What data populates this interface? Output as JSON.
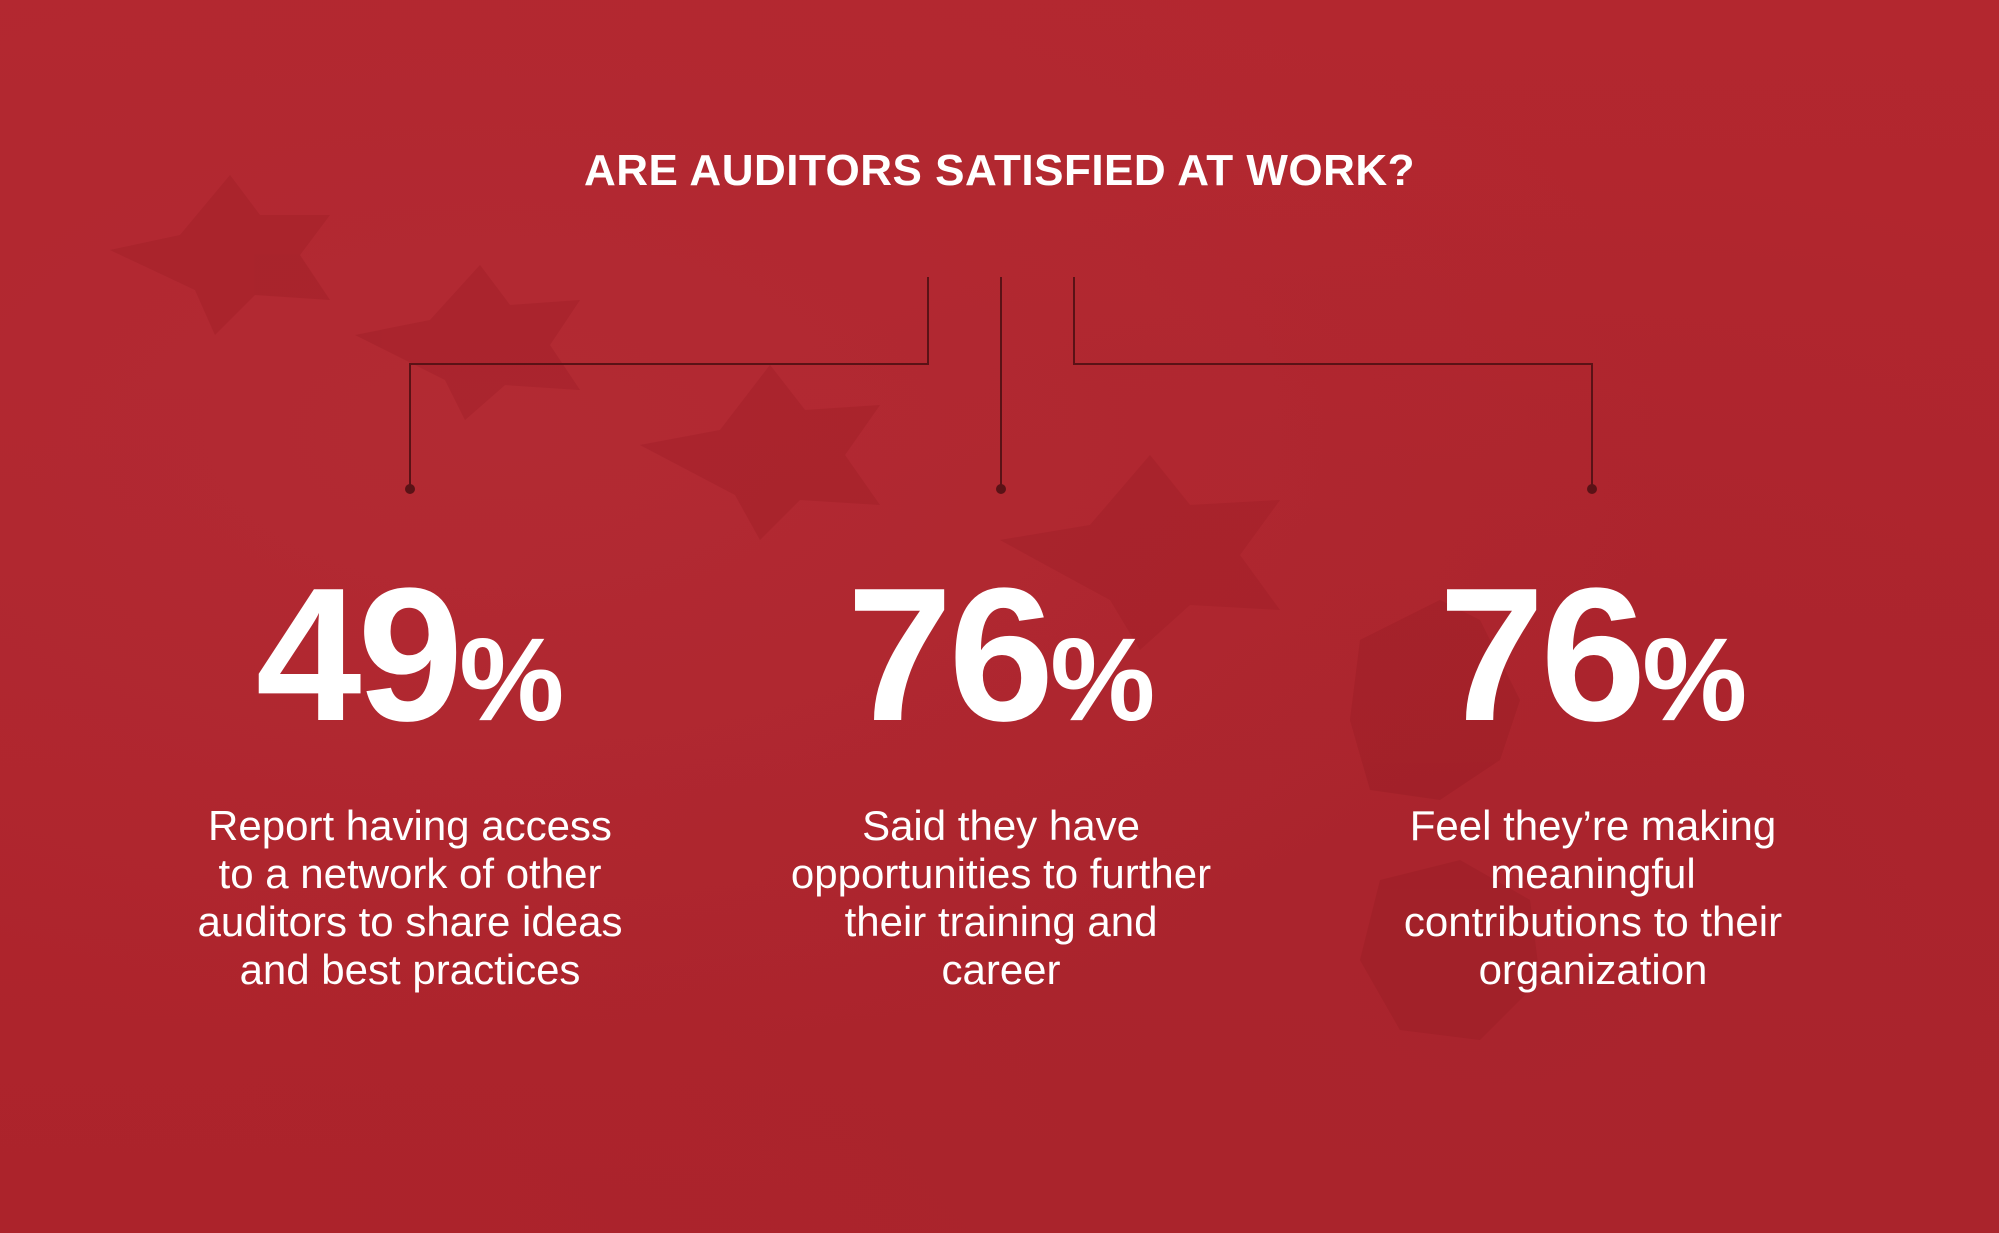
{
  "title": "ARE AUDITORS SATISFIED AT WORK?",
  "colors": {
    "background": "#b0252e",
    "text": "#ffffff",
    "connector": "#5a1216"
  },
  "stats": [
    {
      "value": "49",
      "unit": "%",
      "description": "Report having access to a network of other auditors to share ideas and best practices"
    },
    {
      "value": "76",
      "unit": "%",
      "description": "Said they have opportunities to further their training and career"
    },
    {
      "value": "76",
      "unit": "%",
      "description": "Feel they’re making meaningful contributions to their organization"
    }
  ]
}
